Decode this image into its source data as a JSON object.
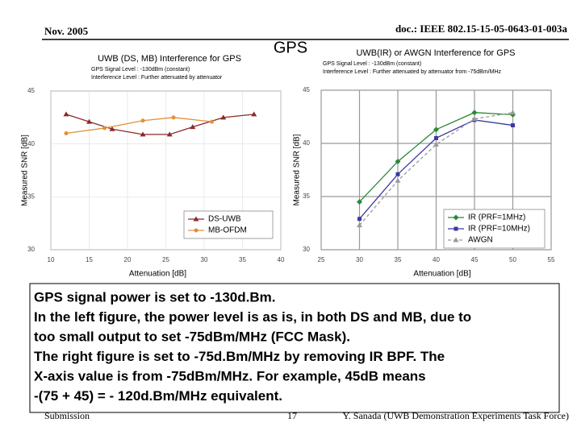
{
  "header": {
    "date": "Nov. 2005",
    "doc": "doc.: IEEE 802.15-15-05-0643-01-003a",
    "title": "GPS"
  },
  "chart_data": [
    {
      "type": "line",
      "title": "UWB (DS, MB) Interference for GPS",
      "subtitle": [
        "GPS Signal Level : -130dBm (constant)",
        "Interference Level : Further attenuated by attenuator"
      ],
      "x_label": "Attenuation [dB]",
      "y_label": "Measured SNR [dB]",
      "xlim": [
        10,
        40
      ],
      "xticks": [
        10,
        15,
        20,
        25,
        30,
        35,
        40
      ],
      "ylim": [
        30,
        45
      ],
      "yticks": [
        30,
        35,
        40,
        45
      ],
      "grid": true,
      "legend": "lower right",
      "series": [
        {
          "name": "DS-UWB",
          "color": "#8b2a2a",
          "marker": "triangle",
          "x": [
            12,
            15,
            18,
            22,
            25.5,
            28.5,
            32.5,
            36.5
          ],
          "values": [
            42.8,
            42.1,
            41.4,
            40.9,
            40.9,
            41.6,
            42.5,
            42.8
          ]
        },
        {
          "name": "MB-OFDM",
          "color": "#e0903a",
          "marker": "circle",
          "x": [
            12,
            17,
            22,
            26,
            31
          ],
          "values": [
            41.0,
            41.5,
            42.2,
            42.5,
            42.1
          ]
        }
      ]
    },
    {
      "type": "line",
      "title": "UWB(IR) or AWGN Interference for GPS",
      "subtitle": [
        "GPS Signal Level : -130dBm (constant)",
        "Interference Level : Further attenuated by attenuator from -75dBm/MHz"
      ],
      "x_label": "Attenuation [dB]",
      "y_label": "Measured SNR [dB]",
      "xlim": [
        25,
        55
      ],
      "xticks": [
        25,
        30,
        35,
        40,
        45,
        50,
        55
      ],
      "ylim": [
        30,
        45
      ],
      "yticks": [
        30,
        35,
        40,
        45
      ],
      "grid": true,
      "legend": "lower right",
      "series": [
        {
          "name": "IR (PRF=1MHz)",
          "color": "#2a8a3a",
          "marker": "diamond",
          "x": [
            30,
            35,
            40,
            45,
            50
          ],
          "values": [
            34.5,
            38.3,
            41.3,
            42.9,
            42.7
          ]
        },
        {
          "name": "IR (PRF=10MHz)",
          "color": "#3a3aa0",
          "marker": "square",
          "x": [
            30,
            35,
            40,
            45,
            50
          ],
          "values": [
            32.9,
            37.1,
            40.5,
            42.2,
            41.7
          ]
        },
        {
          "name": "AWGN",
          "color": "#999999",
          "marker": "triangle",
          "dash": true,
          "x": [
            30,
            35,
            40,
            45,
            50
          ],
          "values": [
            32.3,
            36.5,
            39.9,
            42.3,
            42.9
          ]
        }
      ]
    }
  ],
  "body": [
    "GPS signal power is set to -130d.Bm.",
    "In the left figure, the power level is as is,  in both DS and MB, due to",
    "too small output to set  -75dBm/MHz (FCC Mask).",
    "The right figure is set to -75d.Bm/MHz by removing IR BPF. The",
    "X-axis value is from -75dBm/MHz. For example, 45dB means",
    "-(75 + 45) = - 120d.Bm/MHz equivalent."
  ],
  "footer": {
    "left": "Submission",
    "page": "17",
    "right": "Y. Sanada (UWB Demonstration Experiments Task Force)"
  }
}
